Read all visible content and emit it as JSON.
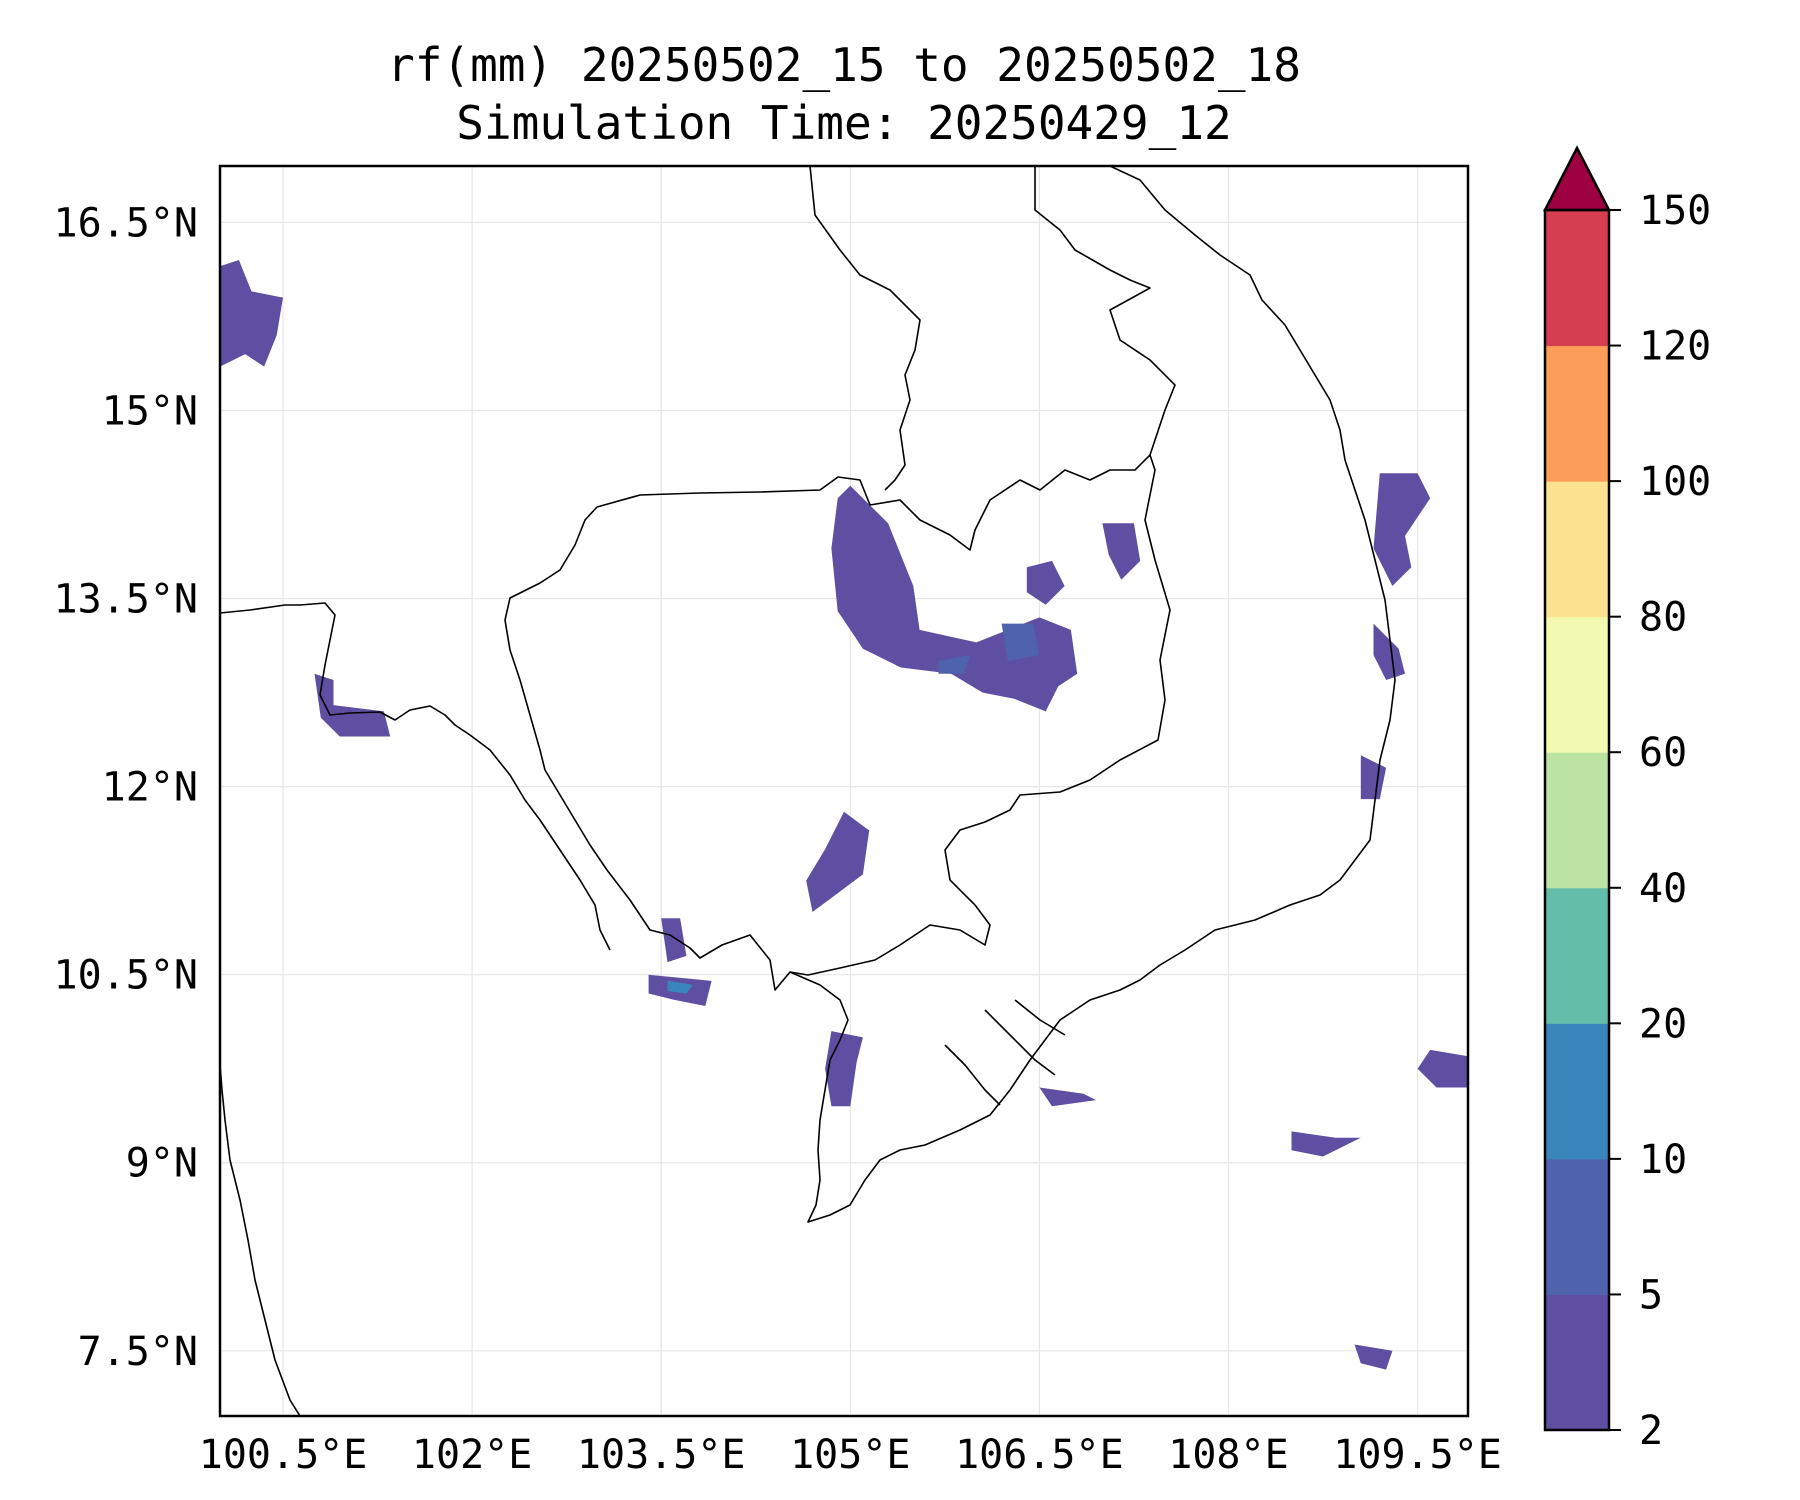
{
  "title_line1": "rf(mm) 20250502_15 to 20250502_18",
  "title_line2": "Simulation Time: 20250429_12",
  "map": {
    "lon_range": [
      100.0,
      109.9
    ],
    "lat_range": [
      6.98,
      16.95
    ],
    "lon_ticks": [
      {
        "value": 100.5,
        "label": "100.5°E"
      },
      {
        "value": 102.0,
        "label": "102°E"
      },
      {
        "value": 103.5,
        "label": "103.5°E"
      },
      {
        "value": 105.0,
        "label": "105°E"
      },
      {
        "value": 106.5,
        "label": "106.5°E"
      },
      {
        "value": 108.0,
        "label": "108°E"
      },
      {
        "value": 109.5,
        "label": "109.5°E"
      }
    ],
    "lat_ticks": [
      {
        "value": 16.5,
        "label": "16.5°N"
      },
      {
        "value": 15.0,
        "label": "15°N"
      },
      {
        "value": 13.5,
        "label": "13.5°N"
      },
      {
        "value": 12.0,
        "label": "12°N"
      },
      {
        "value": 10.5,
        "label": "10.5°N"
      },
      {
        "value": 9.0,
        "label": "9°N"
      },
      {
        "value": 7.5,
        "label": "7.5°N"
      }
    ],
    "gridlines": true,
    "coastline_color": "#000000",
    "rain_areas": [
      {
        "name": "cambodia-north-core",
        "color": "#5e4fa2",
        "points": [
          [
            105.0,
            14.4
          ],
          [
            105.3,
            14.1
          ],
          [
            105.5,
            13.6
          ],
          [
            105.55,
            13.25
          ],
          [
            106.0,
            13.15
          ],
          [
            106.5,
            13.35
          ],
          [
            106.75,
            13.25
          ],
          [
            106.8,
            12.9
          ],
          [
            106.65,
            12.8
          ],
          [
            106.55,
            12.6
          ],
          [
            106.3,
            12.7
          ],
          [
            106.05,
            12.75
          ],
          [
            105.8,
            12.9
          ],
          [
            105.4,
            12.95
          ],
          [
            105.1,
            13.1
          ],
          [
            104.9,
            13.4
          ],
          [
            104.85,
            13.9
          ],
          [
            104.9,
            14.3
          ]
        ]
      },
      {
        "name": "cambodia-north-east-patch",
        "color": "#5e4fa2",
        "points": [
          [
            106.4,
            13.75
          ],
          [
            106.6,
            13.8
          ],
          [
            106.7,
            13.6
          ],
          [
            106.55,
            13.45
          ],
          [
            106.4,
            13.55
          ]
        ]
      },
      {
        "name": "cambodia-north-east-strip",
        "color": "#5e4fa2",
        "points": [
          [
            107.0,
            14.1
          ],
          [
            107.25,
            14.1
          ],
          [
            107.3,
            13.8
          ],
          [
            107.15,
            13.65
          ],
          [
            107.05,
            13.85
          ]
        ]
      },
      {
        "name": "core-center-a",
        "color": "#4f63ad",
        "points": [
          [
            106.2,
            13.3
          ],
          [
            106.45,
            13.3
          ],
          [
            106.5,
            13.05
          ],
          [
            106.25,
            13.0
          ]
        ]
      },
      {
        "name": "core-center-b",
        "color": "#4f63ad",
        "points": [
          [
            105.7,
            13.0
          ],
          [
            105.95,
            13.05
          ],
          [
            105.9,
            12.9
          ],
          [
            105.7,
            12.9
          ]
        ]
      },
      {
        "name": "west-thailand-1",
        "color": "#5e4fa2",
        "points": [
          [
            100.0,
            16.15
          ],
          [
            100.15,
            16.2
          ],
          [
            100.25,
            15.95
          ],
          [
            100.5,
            15.9
          ],
          [
            100.45,
            15.6
          ],
          [
            100.35,
            15.35
          ],
          [
            100.2,
            15.45
          ],
          [
            100.0,
            15.35
          ]
        ]
      },
      {
        "name": "west-thailand-2",
        "color": "#5e4fa2",
        "points": [
          [
            100.75,
            12.9
          ],
          [
            100.9,
            12.85
          ],
          [
            100.9,
            12.65
          ],
          [
            101.3,
            12.6
          ],
          [
            101.35,
            12.4
          ],
          [
            100.95,
            12.4
          ],
          [
            100.8,
            12.55
          ]
        ]
      },
      {
        "name": "gulf-1",
        "color": "#5e4fa2",
        "points": [
          [
            103.4,
            10.5
          ],
          [
            103.9,
            10.45
          ],
          [
            103.85,
            10.25
          ],
          [
            103.6,
            10.3
          ],
          [
            103.4,
            10.35
          ]
        ]
      },
      {
        "name": "gulf-1-core",
        "color": "#3a86bc",
        "points": [
          [
            103.55,
            10.45
          ],
          [
            103.75,
            10.42
          ],
          [
            103.7,
            10.35
          ],
          [
            103.55,
            10.37
          ]
        ]
      },
      {
        "name": "phu-quoc-area",
        "color": "#5e4fa2",
        "points": [
          [
            103.5,
            10.95
          ],
          [
            103.65,
            10.95
          ],
          [
            103.7,
            10.65
          ],
          [
            103.55,
            10.6
          ]
        ]
      },
      {
        "name": "mekong-west",
        "color": "#5e4fa2",
        "points": [
          [
            104.85,
            10.05
          ],
          [
            105.1,
            10.0
          ],
          [
            105.05,
            9.8
          ],
          [
            105.0,
            9.45
          ],
          [
            104.85,
            9.45
          ],
          [
            104.8,
            9.75
          ]
        ]
      },
      {
        "name": "south-cambodia",
        "color": "#5e4fa2",
        "points": [
          [
            104.95,
            11.8
          ],
          [
            105.15,
            11.65
          ],
          [
            105.1,
            11.3
          ],
          [
            104.9,
            11.15
          ],
          [
            104.7,
            11.0
          ],
          [
            104.65,
            11.25
          ],
          [
            104.8,
            11.5
          ]
        ]
      },
      {
        "name": "vietnam-coast-1",
        "color": "#5e4fa2",
        "points": [
          [
            109.2,
            14.5
          ],
          [
            109.5,
            14.5
          ],
          [
            109.6,
            14.3
          ],
          [
            109.4,
            14.0
          ],
          [
            109.45,
            13.75
          ],
          [
            109.3,
            13.6
          ],
          [
            109.15,
            13.9
          ]
        ]
      },
      {
        "name": "vietnam-coast-2",
        "color": "#5e4fa2",
        "points": [
          [
            109.15,
            13.3
          ],
          [
            109.35,
            13.1
          ],
          [
            109.4,
            12.9
          ],
          [
            109.25,
            12.85
          ],
          [
            109.15,
            13.05
          ]
        ]
      },
      {
        "name": "vietnam-coast-3",
        "color": "#5e4fa2",
        "points": [
          [
            109.05,
            12.25
          ],
          [
            109.25,
            12.15
          ],
          [
            109.2,
            11.9
          ],
          [
            109.05,
            11.9
          ]
        ]
      },
      {
        "name": "offshore-east-1",
        "color": "#5e4fa2",
        "points": [
          [
            109.6,
            9.9
          ],
          [
            109.9,
            9.85
          ],
          [
            109.9,
            9.6
          ],
          [
            109.65,
            9.6
          ],
          [
            109.5,
            9.75
          ]
        ]
      },
      {
        "name": "offshore-east-2",
        "color": "#5e4fa2",
        "points": [
          [
            108.5,
            9.25
          ],
          [
            108.85,
            9.2
          ],
          [
            109.05,
            9.2
          ],
          [
            108.75,
            9.05
          ],
          [
            108.5,
            9.1
          ]
        ]
      },
      {
        "name": "mekong-delta-east",
        "color": "#5e4fa2",
        "points": [
          [
            106.5,
            9.6
          ],
          [
            106.85,
            9.55
          ],
          [
            106.95,
            9.5
          ],
          [
            106.6,
            9.45
          ]
        ]
      },
      {
        "name": "offshore-south-east",
        "color": "#5e4fa2",
        "points": [
          [
            109.0,
            7.55
          ],
          [
            109.3,
            7.5
          ],
          [
            109.25,
            7.35
          ],
          [
            109.05,
            7.4
          ]
        ]
      }
    ]
  },
  "colorbar": {
    "levels": [
      "2",
      "5",
      "10",
      "20",
      "40",
      "60",
      "80",
      "100",
      "120",
      "150"
    ],
    "colors": [
      "#5e4fa2",
      "#4f63ad",
      "#3a86bc",
      "#63bea9",
      "#bde3a2",
      "#f2f9b0",
      "#fce190",
      "#fb9d59",
      "#d53e4f"
    ],
    "extend_color": "#9e0142"
  }
}
